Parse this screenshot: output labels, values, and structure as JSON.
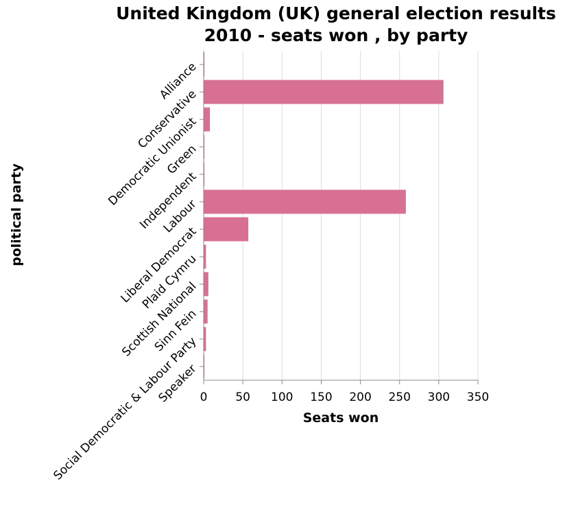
{
  "chart_data": {
    "type": "bar",
    "orientation": "horizontal",
    "title": [
      "United Kingdom (UK) general election results",
      "2010 - seats won , by party"
    ],
    "xlabel": "Seats won",
    "ylabel": "political party",
    "xlim": [
      0,
      350
    ],
    "xticks": [
      0,
      50,
      100,
      150,
      200,
      250,
      300,
      350
    ],
    "grid": true,
    "bar_color": "#d87093",
    "categories": [
      "Alliance",
      "Conservative",
      "Democratic Unionist",
      "Green",
      "Independent",
      "Labour",
      "Liberal Democrat",
      "Plaid Cymru",
      "Scottish National",
      "Sinn Fein",
      "Social Democratic & Labour Party",
      "Speaker"
    ],
    "values": [
      1,
      306,
      8,
      1,
      1,
      258,
      57,
      3,
      6,
      5,
      3,
      1
    ]
  }
}
